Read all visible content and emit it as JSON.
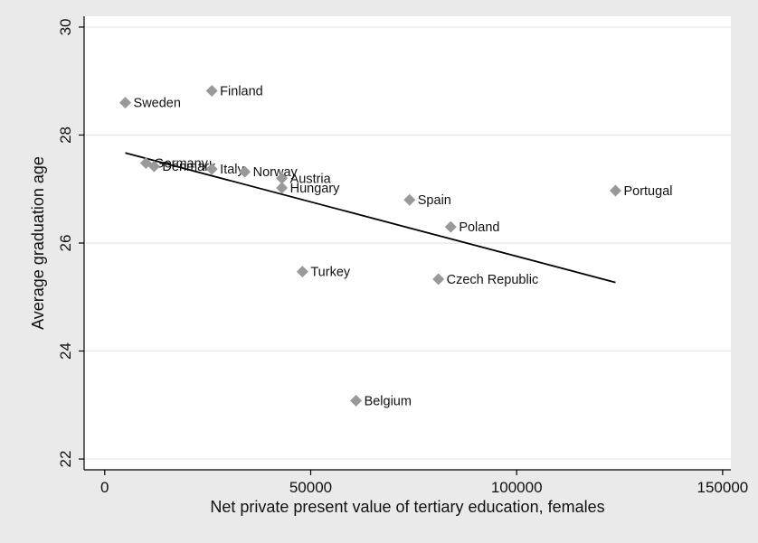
{
  "chart_data": {
    "type": "scatter",
    "title": "",
    "xlabel": "Net private present value of tertiary education, females",
    "ylabel": "Average graduation age",
    "xlim": [
      -5000,
      152000
    ],
    "ylim": [
      21.8,
      30.2
    ],
    "xticks": [
      0,
      50000,
      100000,
      150000
    ],
    "yticks": [
      22,
      24,
      26,
      28,
      30
    ],
    "grid": true,
    "legend": "none",
    "colors": {
      "marker": "#999999",
      "fit_line": "#000000",
      "grid": "#e6e6e6",
      "background": "#eaeaea",
      "plot_area": "#ffffff"
    },
    "points": [
      {
        "label": "Sweden",
        "x": 5000,
        "y": 28.6
      },
      {
        "label": "Finland",
        "x": 26000,
        "y": 28.82
      },
      {
        "label": "Germany",
        "x": 10000,
        "y": 27.48
      },
      {
        "label": "Denmark",
        "x": 12000,
        "y": 27.42
      },
      {
        "label": "Italy",
        "x": 26000,
        "y": 27.37
      },
      {
        "label": "Norway",
        "x": 34000,
        "y": 27.32
      },
      {
        "label": "Austria",
        "x": 43000,
        "y": 27.2
      },
      {
        "label": "Hungary",
        "x": 43000,
        "y": 27.02
      },
      {
        "label": "Spain",
        "x": 74000,
        "y": 26.8
      },
      {
        "label": "Portugal",
        "x": 124000,
        "y": 26.97
      },
      {
        "label": "Poland",
        "x": 84000,
        "y": 26.3
      },
      {
        "label": "Turkey",
        "x": 48000,
        "y": 25.47
      },
      {
        "label": "Czech Republic",
        "x": 81000,
        "y": 25.33
      },
      {
        "label": "Belgium",
        "x": 61000,
        "y": 23.08
      }
    ],
    "fit_line": {
      "x": [
        5000,
        124000
      ],
      "y": [
        27.67,
        25.27
      ]
    }
  }
}
